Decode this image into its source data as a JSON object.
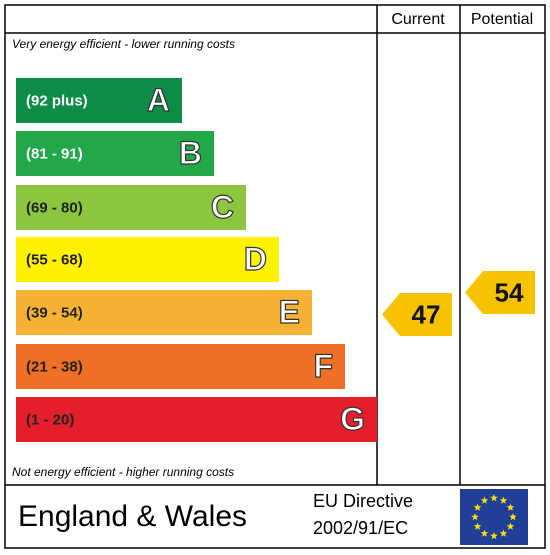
{
  "header": {
    "columns": [
      "Current",
      "Potential"
    ]
  },
  "top_note": "Very energy efficient - lower running costs",
  "bottom_note": "Not energy efficient - higher running costs",
  "bands": [
    {
      "range": "(92 plus)",
      "letter": "A",
      "color": "#0c8c45"
    },
    {
      "range": "(81 - 91)",
      "letter": "B",
      "color": "#22a84a"
    },
    {
      "range": "(69 - 80)",
      "letter": "C",
      "color": "#8cc63e"
    },
    {
      "range": "(55 - 68)",
      "letter": "D",
      "color": "#fff100"
    },
    {
      "range": "(39 - 54)",
      "letter": "E",
      "color": "#f7b233"
    },
    {
      "range": "(21 - 38)",
      "letter": "F",
      "color": "#ee6f25"
    },
    {
      "range": "(1 - 20)",
      "letter": "G",
      "color": "#e41e2b"
    }
  ],
  "ratings": {
    "current": 47,
    "potential": 54,
    "color": "#f7c300"
  },
  "footer": {
    "region": "England & Wales",
    "directive_line1": "EU Directive",
    "directive_line2": "2002/91/EC"
  }
}
